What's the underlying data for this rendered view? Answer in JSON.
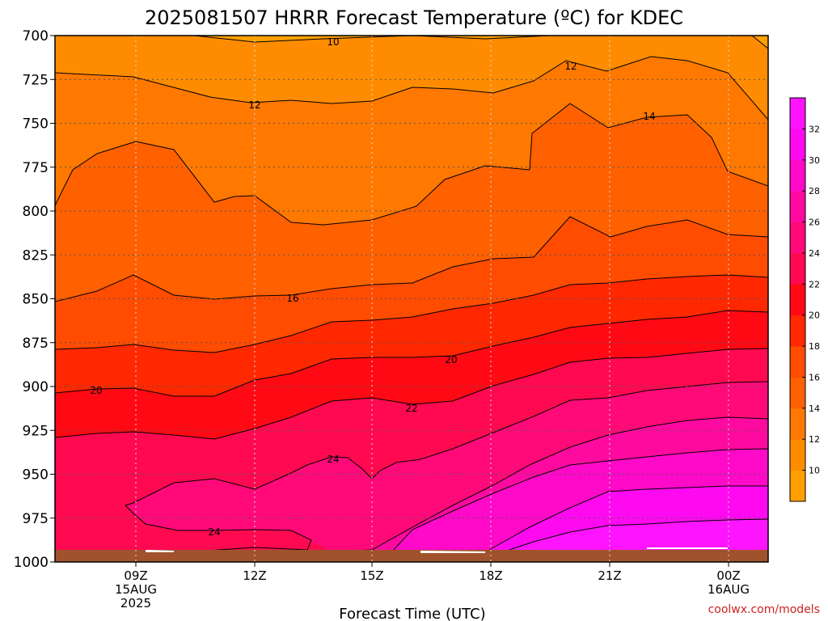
{
  "chart_data": {
    "type": "heatmap",
    "title": "2025081507 HRRR Forecast Temperature (ºC) for KDEC",
    "xlabel": "Forecast Time (UTC)",
    "ylabel": "",
    "credit": "coolwx.com/models",
    "y_ticks": [
      "700",
      "725",
      "750",
      "775",
      "800",
      "825",
      "850",
      "875",
      "900",
      "925",
      "950",
      "975",
      "1000"
    ],
    "x_ticks": [
      {
        "label": "09Z",
        "sub": [
          "15AUG",
          "2025"
        ]
      },
      {
        "label": "12Z",
        "sub": []
      },
      {
        "label": "15Z",
        "sub": []
      },
      {
        "label": "18Z",
        "sub": []
      },
      {
        "label": "21Z",
        "sub": []
      },
      {
        "label": "00Z",
        "sub": [
          "16AUG"
        ]
      }
    ],
    "colorbar_ticks": [
      "10",
      "12",
      "14",
      "16",
      "18",
      "20",
      "22",
      "24",
      "26",
      "28",
      "30",
      "32"
    ],
    "contour_labels": [
      "10",
      "12",
      "12",
      "14",
      "16",
      "20",
      "20",
      "22",
      "24",
      "24"
    ],
    "colors": {
      "c8": "#ffa000",
      "c10": "#ff8c00",
      "c12": "#ff7800",
      "c14": "#ff6000",
      "c16": "#ff4c00",
      "c18": "#ff2800",
      "c20": "#ff0a14",
      "c22": "#ff0a50",
      "c24": "#ff0a78",
      "c26": "#ff0aa0",
      "c28": "#ff0ac8",
      "c30": "#ff0af0",
      "c32": "#ff14ff",
      "ground": "#a0522d",
      "grid": "#555555",
      "credit": "#cc2222"
    },
    "grid": true
  }
}
